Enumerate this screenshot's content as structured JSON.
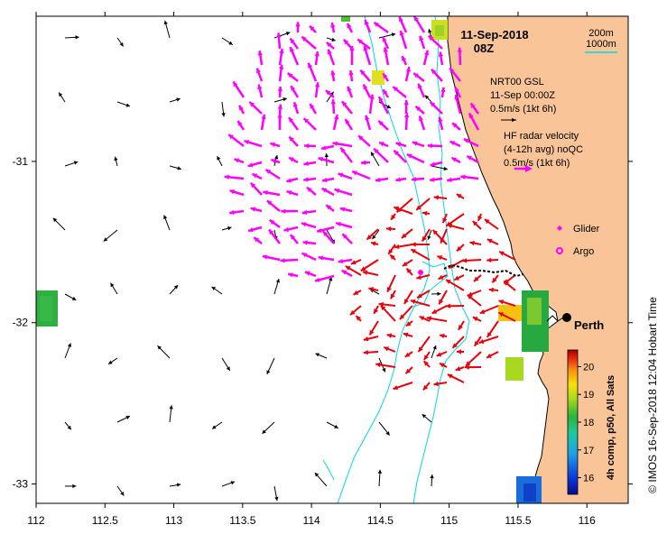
{
  "title": {
    "date": "11-Sep-2018",
    "time": "08Z"
  },
  "axes": {
    "x_ticks": [
      "112",
      "112.5",
      "113",
      "113.5",
      "114",
      "114.5",
      "115",
      "115.5",
      "116"
    ],
    "x_values": [
      112,
      112.5,
      113,
      113.5,
      114,
      114.5,
      115,
      115.5,
      116
    ],
    "y_ticks": [
      "-31",
      "-32",
      "-33"
    ],
    "y_values": [
      -31,
      -32,
      -33
    ],
    "lon_range": [
      112,
      116.3
    ],
    "lat_range": [
      -30.1,
      -33.12
    ]
  },
  "bathymetry_legend": {
    "contour_200": "200m",
    "contour_1000": "1000m"
  },
  "model_legend": {
    "line1": "NRT00 GSL",
    "line2": "11-Sep 00:00Z",
    "scale": "0.5m/s (1kt 6h)"
  },
  "radar_legend": {
    "line1": "HF radar velocity",
    "line2": "(4-12h avg) noQC",
    "scale": "0.5m/s (1kt 6h)"
  },
  "platform_legend": {
    "glider": "Glider",
    "argo": "Argo"
  },
  "city": {
    "name": "Perth",
    "lon": 115.86,
    "lat": -31.95
  },
  "colorbar": {
    "label": "4h comp, p50, All Sats",
    "ticks": [
      "20",
      "19",
      "18",
      "17",
      "16"
    ],
    "tick_values": [
      20,
      19,
      18,
      17,
      16
    ],
    "range": [
      15.4,
      20.6
    ]
  },
  "credit": "© IMOS 16-Sep-2018 12:04 Hobart Time",
  "colors": {
    "land": "#f9c598",
    "contour": "#00d8e8",
    "model_arrow": "#000000",
    "radar_magenta": "#ff00ff",
    "radar_red": "#e8000a",
    "glider": "#ff00ff"
  }
}
